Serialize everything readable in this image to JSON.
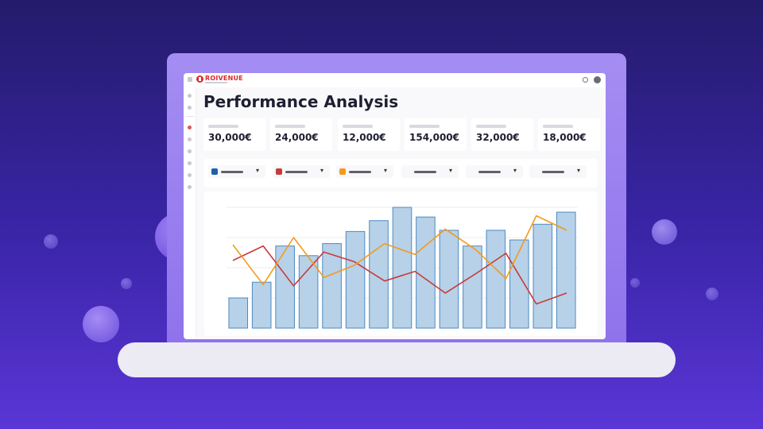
{
  "app": {
    "brand": "ROIVENUE"
  },
  "page": {
    "title": "Performance Analysis"
  },
  "kpis": [
    {
      "value": "30,000€"
    },
    {
      "value": "24,000€"
    },
    {
      "value": "12,000€"
    },
    {
      "value": "154,000€"
    },
    {
      "value": "32,000€"
    },
    {
      "value": "18,000€"
    }
  ],
  "filters": [
    {
      "swatch": "#1f5fa8"
    },
    {
      "swatch": "#c73b3b"
    },
    {
      "swatch": "#f39a1c"
    },
    {
      "swatch": ""
    },
    {
      "swatch": ""
    },
    {
      "swatch": ""
    }
  ],
  "icons": {
    "menu": "menu-icon",
    "help": "help-icon",
    "caret": "▾"
  },
  "colors": {
    "bar_fill": "#b7d1e8",
    "bar_stroke": "#4d8ac2",
    "series_red": "#c73b3b",
    "series_orange": "#f39a1c",
    "accent": "#d72c2c"
  },
  "chart_data": {
    "type": "bar",
    "ylim": [
      0,
      100
    ],
    "grid": true,
    "values": [
      25,
      38,
      68,
      60,
      70,
      80,
      89,
      100,
      92,
      81,
      68,
      81,
      73,
      86,
      96
    ],
    "series": [
      {
        "type": "line",
        "color": "#c73b3b",
        "values": [
          56,
          68,
          35,
          63,
          55,
          39,
          47,
          29,
          45,
          62,
          20,
          29
        ]
      },
      {
        "type": "line",
        "color": "#f39a1c",
        "values": [
          69,
          36,
          75,
          42,
          52,
          70,
          61,
          82,
          65,
          41,
          93,
          81
        ]
      }
    ]
  }
}
